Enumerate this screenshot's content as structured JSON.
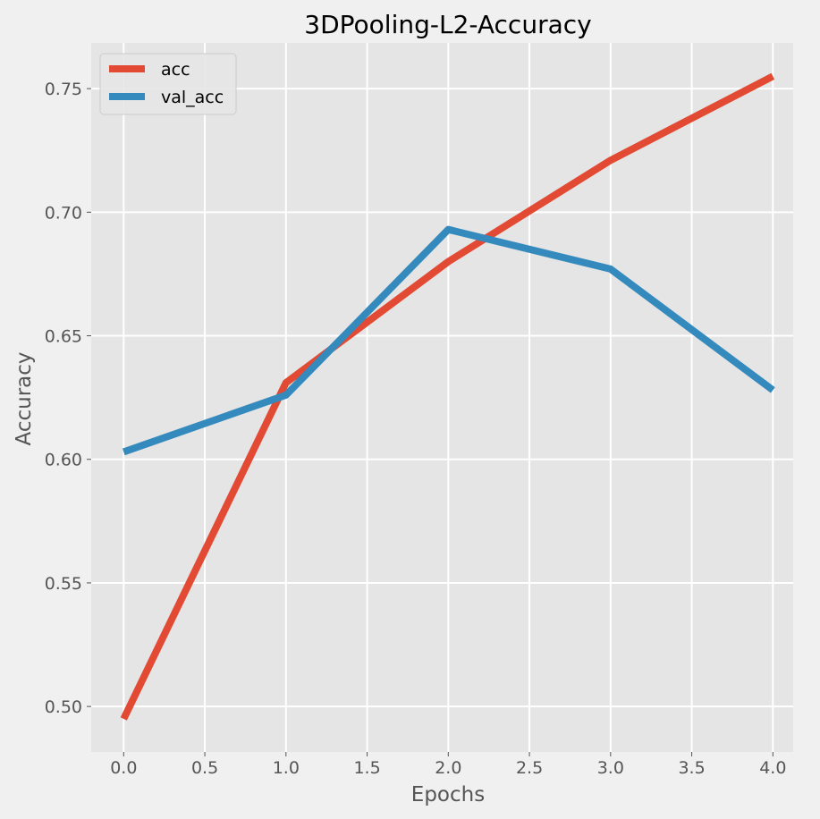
{
  "chart_data": {
    "type": "line",
    "title": "3DPooling-L2-Accuracy",
    "xlabel": "Epochs",
    "ylabel": "Accuracy",
    "xlim": [
      -0.2,
      4.125
    ],
    "ylim": [
      0.4816,
      0.7685
    ],
    "xticks": [
      0.0,
      0.5,
      1.0,
      1.5,
      2.0,
      2.5,
      3.0,
      3.5,
      4.0
    ],
    "xtick_labels": [
      "0.0",
      "0.5",
      "1.0",
      "1.5",
      "2.0",
      "2.5",
      "3.0",
      "3.5",
      "4.0"
    ],
    "yticks": [
      0.5,
      0.55,
      0.6,
      0.65,
      0.7,
      0.75
    ],
    "ytick_labels": [
      "0.50",
      "0.55",
      "0.60",
      "0.65",
      "0.70",
      "0.75"
    ],
    "x": [
      0,
      1,
      2,
      3,
      4
    ],
    "series": [
      {
        "name": "acc",
        "color": "#e24a33",
        "values": [
          0.495,
          0.631,
          0.68,
          0.721,
          0.755
        ]
      },
      {
        "name": "val_acc",
        "color": "#348abd",
        "values": [
          0.603,
          0.626,
          0.693,
          0.677,
          0.628
        ]
      }
    ],
    "grid": true,
    "legend_position": "top-left",
    "background_color": "#e5e5e5",
    "figure_color": "#f0f0f0",
    "grid_color": "#ffffff"
  }
}
